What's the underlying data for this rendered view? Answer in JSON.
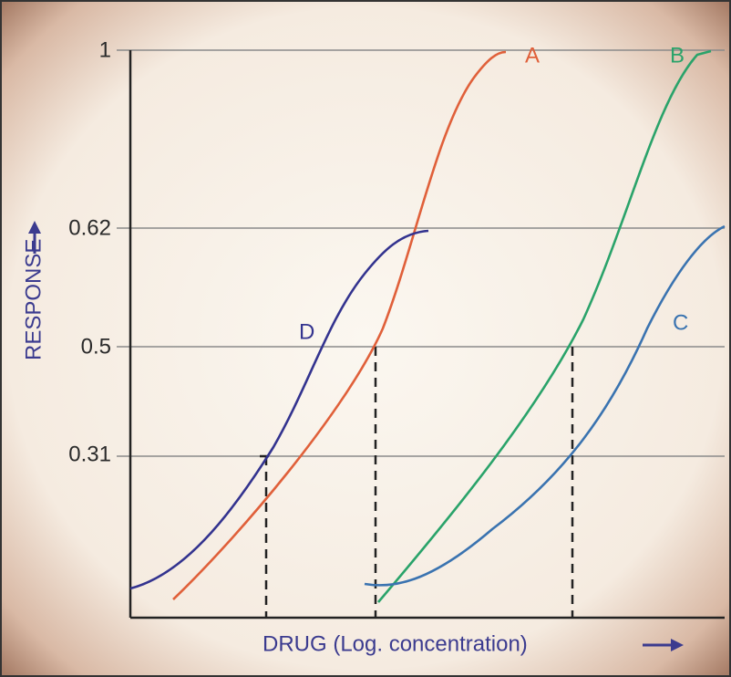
{
  "y_axis_label": "RESPONSE",
  "x_axis_label": "DRUG (Log. concentration)",
  "tick_labels": [
    "1",
    "0.62",
    "0.5",
    "0.31"
  ],
  "curve_labels": [
    "A",
    "B",
    "C",
    "D"
  ]
}
